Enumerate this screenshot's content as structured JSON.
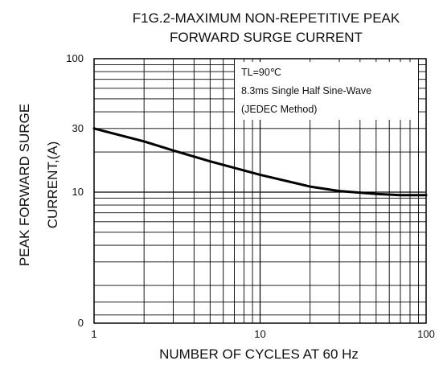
{
  "chart_data": {
    "type": "line",
    "title_line1": "F1G.2-MAXIMUM NON-REPETITIVE PEAK",
    "title_line2": "FORWARD SURGE CURRENT",
    "xlabel": "NUMBER OF CYCLES AT 60 Hz",
    "ylabel_line1": "PEAK FORWARD SURGE",
    "ylabel_line2": "CURRENT,(A)",
    "x_scale": "log",
    "xlim": [
      1,
      100
    ],
    "x_ticks": [
      {
        "value": 1,
        "label": "1"
      },
      {
        "value": 10,
        "label": "10"
      },
      {
        "value": 100,
        "label": "100"
      }
    ],
    "y_ticks": [
      {
        "value": 100,
        "label": "100"
      },
      {
        "value": 30,
        "label": "30"
      },
      {
        "value": 10,
        "label": "10"
      },
      {
        "value": 0,
        "label": "0"
      }
    ],
    "annotations": [
      "TL=90℃",
      "8.3ms Single Half Sine-Wave",
      "(JEDEC Method)"
    ],
    "grid": true,
    "line_color": "#000000",
    "series": [
      {
        "x": [
          1,
          2,
          3,
          5,
          10,
          20,
          30,
          50,
          70,
          100
        ],
        "y": [
          30,
          24,
          20.5,
          17,
          13.5,
          11,
          10.2,
          9.7,
          9.5,
          9.5
        ]
      }
    ]
  }
}
